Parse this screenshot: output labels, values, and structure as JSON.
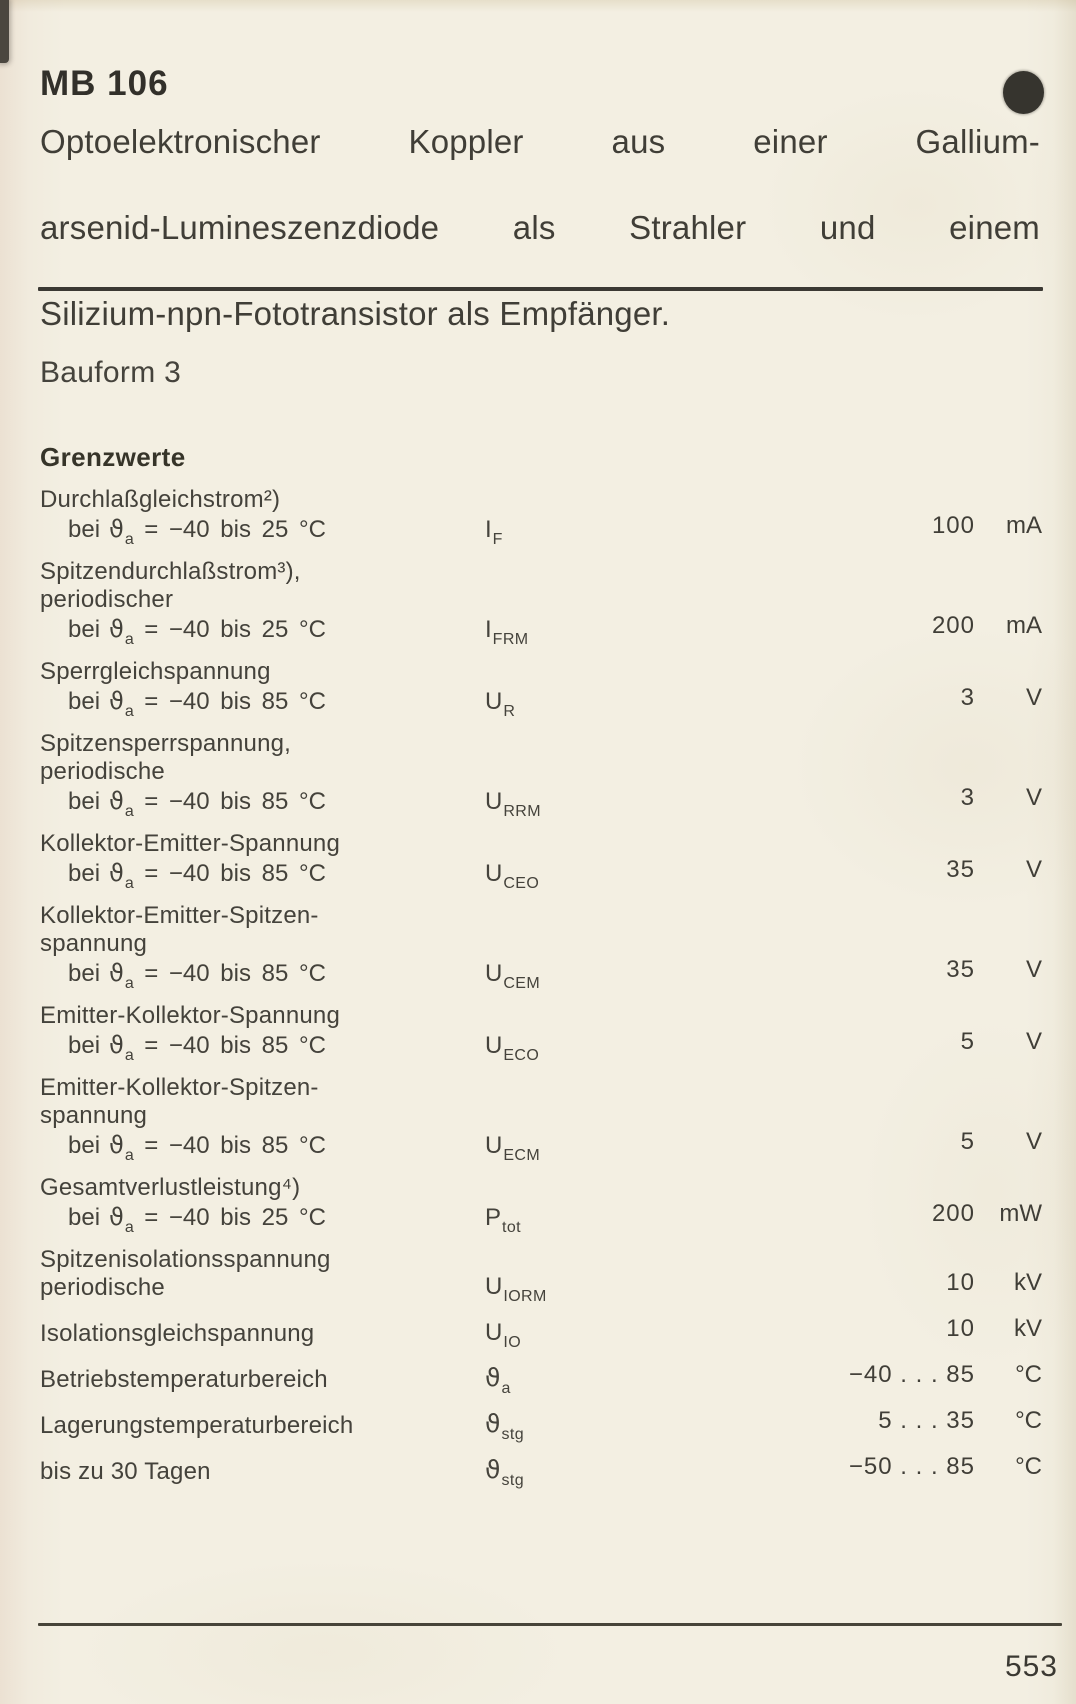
{
  "header": {
    "model": "MB 106",
    "description_lines": [
      "Optoelektronischer Koppler aus einer Gallium-",
      "arsenid-Lumineszenzdiode als Strahler und einem",
      "Silizium-npn-Fototransistor als Empfänger."
    ]
  },
  "sections": {
    "bauform": "Bauform 3",
    "limits_title": "Grenzwerte"
  },
  "limits": {
    "cond_pre": "bei",
    "theta": "ϑ",
    "rows": [
      {
        "label_lines": [
          "Durchlaßgleichstrom²)"
        ],
        "cond_sub": "a",
        "cond_rest": "= −40 bis 25 °C",
        "sym": "I",
        "sym_sub": "F",
        "sym_theta": false,
        "value": "100",
        "unit": "mA"
      },
      {
        "label_lines": [
          "Spitzendurchlaßstrom³),",
          "periodischer"
        ],
        "cond_sub": "a",
        "cond_rest": "= −40 bis 25 °C",
        "sym": "I",
        "sym_sub": "FRM",
        "sym_theta": false,
        "value": "200",
        "unit": "mA"
      },
      {
        "label_lines": [
          "Sperrgleichspannung"
        ],
        "cond_sub": "a",
        "cond_rest": "= −40 bis 85 °C",
        "sym": "U",
        "sym_sub": "R",
        "sym_theta": false,
        "value": "3",
        "unit": "V"
      },
      {
        "label_lines": [
          "Spitzensperrspannung,",
          "periodische"
        ],
        "cond_sub": "a",
        "cond_rest": "= −40 bis 85 °C",
        "sym": "U",
        "sym_sub": "RRM",
        "sym_theta": false,
        "value": "3",
        "unit": "V"
      },
      {
        "label_lines": [
          "Kollektor-Emitter-Spannung"
        ],
        "cond_sub": "a",
        "cond_rest": "= −40 bis 85 °C",
        "sym": "U",
        "sym_sub": "CEO",
        "sym_theta": false,
        "value": "35",
        "unit": "V"
      },
      {
        "label_lines": [
          "Kollektor-Emitter-Spitzen-",
          "spannung"
        ],
        "cond_sub": "a",
        "cond_rest": "= −40 bis 85 °C",
        "sym": "U",
        "sym_sub": "CEM",
        "sym_theta": false,
        "value": "35",
        "unit": "V"
      },
      {
        "label_lines": [
          "Emitter-Kollektor-Spannung"
        ],
        "cond_sub": "a",
        "cond_rest": "= −40 bis 85 °C",
        "sym": "U",
        "sym_sub": "ECO",
        "sym_theta": false,
        "value": "5",
        "unit": "V"
      },
      {
        "label_lines": [
          "Emitter-Kollektor-Spitzen-",
          "spannung"
        ],
        "cond_sub": "a",
        "cond_rest": "= −40 bis 85 °C",
        "sym": "U",
        "sym_sub": "ECM",
        "sym_theta": false,
        "value": "5",
        "unit": "V"
      },
      {
        "label_lines": [
          "Gesamtverlustleistung⁴)"
        ],
        "cond_sub": "a",
        "cond_rest": "= −40 bis 25 °C",
        "sym": "P",
        "sym_sub": "tot",
        "sym_theta": false,
        "value": "200",
        "unit": "mW"
      },
      {
        "label_lines": [
          "Spitzenisolationsspannung",
          "periodische"
        ],
        "cond_sub": null,
        "cond_rest": null,
        "sym": "U",
        "sym_sub": "IORM",
        "sym_theta": false,
        "value": "10",
        "unit": "kV"
      },
      {
        "label_lines": [
          "Isolationsgleichspannung"
        ],
        "cond_sub": null,
        "cond_rest": null,
        "sym": "U",
        "sym_sub": "IO",
        "sym_theta": false,
        "value": "10",
        "unit": "kV"
      },
      {
        "label_lines": [
          "Betriebstemperaturbereich"
        ],
        "cond_sub": null,
        "cond_rest": null,
        "sym": "ϑ",
        "sym_sub": "a",
        "sym_theta": true,
        "value": "−40 . . . 85",
        "unit": "°C"
      },
      {
        "label_lines": [
          "Lagerungstemperaturbereich"
        ],
        "cond_sub": null,
        "cond_rest": null,
        "sym": "ϑ",
        "sym_sub": "stg",
        "sym_theta": true,
        "value": "5 . . . 35",
        "unit": "°C"
      },
      {
        "label_lines": [
          "bis zu 30 Tagen"
        ],
        "cond_sub": null,
        "cond_rest": null,
        "sym": "ϑ",
        "sym_sub": "stg",
        "sym_theta": true,
        "value": "−50 . . . 85",
        "unit": "°C"
      }
    ]
  },
  "footer": {
    "page_number": "553"
  },
  "decor": {
    "thumb_index_dot_shape": "circle",
    "thumb_index_dot_color": "#36342e",
    "paper_color": "#f3efe2",
    "ink_color": "#3e3c35",
    "rule_color": "#3b3933"
  }
}
